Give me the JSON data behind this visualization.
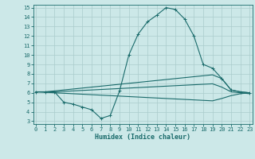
{
  "xlabel": "Humidex (Indice chaleur)",
  "xlim": [
    0,
    23
  ],
  "ylim": [
    3,
    15
  ],
  "xticks": [
    0,
    1,
    2,
    3,
    4,
    5,
    6,
    7,
    8,
    9,
    10,
    11,
    12,
    13,
    14,
    15,
    16,
    17,
    18,
    19,
    20,
    21,
    22,
    23
  ],
  "yticks": [
    3,
    4,
    5,
    6,
    7,
    8,
    9,
    10,
    11,
    12,
    13,
    14,
    15
  ],
  "bg_color": "#cce8e8",
  "line_color": "#1a6b6b",
  "grid_color": "#aacccc",
  "line1_x": [
    0,
    1,
    2,
    3,
    4,
    5,
    6,
    7,
    8,
    9,
    10,
    11,
    12,
    13,
    14,
    15,
    16,
    17,
    18,
    19,
    20,
    21,
    22,
    23
  ],
  "line1_y": [
    6.1,
    6.1,
    6.1,
    5.0,
    4.8,
    4.5,
    4.2,
    3.3,
    3.6,
    6.2,
    10.0,
    12.2,
    13.5,
    14.2,
    15.0,
    14.8,
    13.8,
    12.0,
    9.0,
    8.6,
    7.5,
    6.3,
    6.1,
    6.0
  ],
  "line2_x": [
    0,
    1,
    2,
    3,
    4,
    5,
    6,
    7,
    8,
    9,
    10,
    11,
    12,
    13,
    14,
    15,
    16,
    17,
    18,
    19,
    20,
    21,
    22,
    23
  ],
  "line2_y": [
    6.1,
    6.1,
    6.2,
    6.3,
    6.4,
    6.5,
    6.6,
    6.7,
    6.8,
    6.9,
    7.0,
    7.1,
    7.2,
    7.3,
    7.4,
    7.5,
    7.6,
    7.7,
    7.8,
    7.9,
    7.5,
    6.3,
    6.1,
    6.0
  ],
  "line3_x": [
    0,
    1,
    2,
    3,
    4,
    5,
    6,
    7,
    8,
    9,
    10,
    11,
    12,
    13,
    14,
    15,
    16,
    17,
    18,
    19,
    20,
    21,
    22,
    23
  ],
  "line3_y": [
    6.1,
    6.1,
    6.1,
    6.15,
    6.2,
    6.25,
    6.3,
    6.35,
    6.4,
    6.45,
    6.5,
    6.55,
    6.6,
    6.65,
    6.7,
    6.75,
    6.8,
    6.85,
    6.9,
    6.95,
    6.6,
    6.1,
    6.0,
    5.9
  ],
  "line4_x": [
    0,
    1,
    2,
    3,
    4,
    5,
    6,
    7,
    8,
    9,
    10,
    11,
    12,
    13,
    14,
    15,
    16,
    17,
    18,
    19,
    20,
    21,
    22,
    23
  ],
  "line4_y": [
    6.1,
    6.05,
    6.0,
    5.95,
    5.9,
    5.85,
    5.8,
    5.75,
    5.7,
    5.65,
    5.6,
    5.55,
    5.5,
    5.45,
    5.4,
    5.35,
    5.3,
    5.25,
    5.2,
    5.15,
    5.4,
    5.7,
    5.9,
    6.0
  ]
}
